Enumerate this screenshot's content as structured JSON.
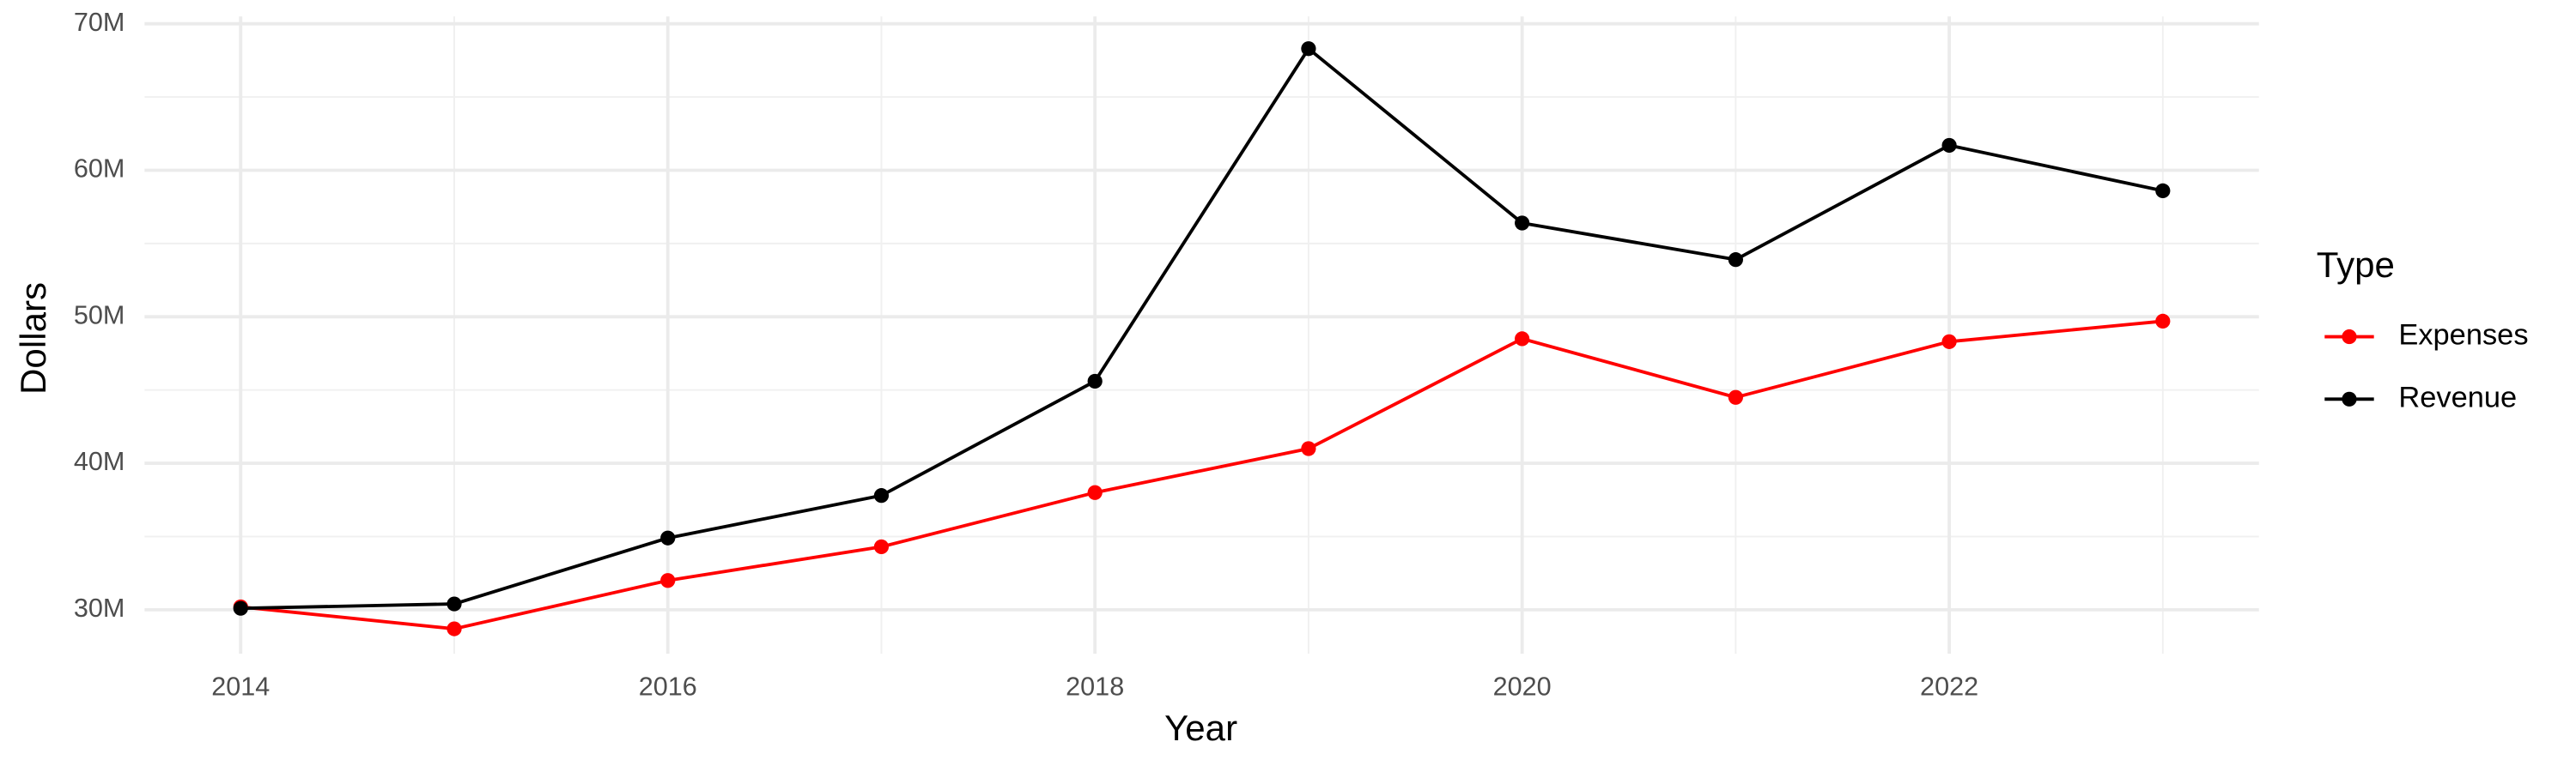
{
  "chart_data": {
    "type": "line",
    "x_label": "Year",
    "y_label": "Dollars",
    "legend_title": "Type",
    "legend_position": "right",
    "grid": true,
    "x": [
      2014,
      2015,
      2016,
      2017,
      2018,
      2019,
      2020,
      2021,
      2022,
      2023
    ],
    "series": [
      {
        "name": "Expenses",
        "color": "#ff0000",
        "values": [
          30200000,
          28700000,
          32000000,
          34300000,
          38000000,
          41000000,
          48500000,
          44500000,
          48300000,
          49700000
        ]
      },
      {
        "name": "Revenue",
        "color": "#000000",
        "values": [
          30100000,
          30400000,
          34900000,
          37800000,
          45600000,
          68300000,
          56400000,
          53900000,
          61700000,
          58600000
        ]
      }
    ],
    "xlim": [
      2013.55,
      2023.45
    ],
    "xticks": [
      2014,
      2016,
      2018,
      2020,
      2022
    ],
    "ylim": [
      27000000,
      70500000
    ],
    "yticks": [
      {
        "value": 30000000,
        "label": "30M"
      },
      {
        "value": 40000000,
        "label": "40M"
      },
      {
        "value": 50000000,
        "label": "50M"
      },
      {
        "value": 60000000,
        "label": "60M"
      },
      {
        "value": 70000000,
        "label": "70M"
      }
    ]
  }
}
